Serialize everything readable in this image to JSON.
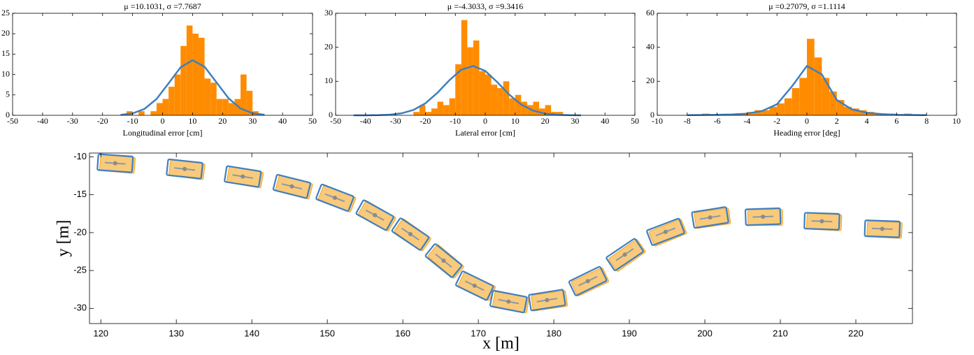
{
  "chart_data": [
    {
      "type": "histogram",
      "title": "μ =10.1031, σ =7.7687",
      "xlabel": "Longitudinal error [cm]",
      "color": "#ff8c00",
      "bins": [
        -12,
        -10,
        -8,
        -6,
        -4,
        -2,
        0,
        2,
        4,
        6,
        8,
        10,
        12,
        14,
        16,
        18,
        20,
        22,
        24,
        26,
        28,
        30,
        32
      ],
      "values": [
        1,
        0,
        1,
        0,
        1,
        3,
        4,
        7,
        10,
        17,
        22,
        20,
        19,
        9,
        8,
        4,
        4,
        3,
        4,
        10,
        6,
        1
      ],
      "line": {
        "color": "#3f7fbf",
        "x": [
          -14,
          -10,
          -6,
          -2,
          2,
          6,
          10,
          14,
          18,
          22,
          26,
          30,
          34
        ],
        "values": [
          0.11,
          0.47,
          1.58,
          4.0,
          7.84,
          11.75,
          13.5,
          11.9,
          8.05,
          4.18,
          1.66,
          0.51,
          0.12
        ]
      },
      "xlim": [
        -50,
        50
      ],
      "xticks": [
        -50,
        -40,
        -30,
        -20,
        -10,
        0,
        10,
        20,
        30,
        40,
        50
      ],
      "ylim": [
        0,
        25
      ],
      "yticks": [
        0,
        5,
        10,
        15,
        20,
        25
      ]
    },
    {
      "type": "histogram",
      "title": "μ =-4.3033, σ =9.3416",
      "xlabel": "Lateral error [cm]",
      "color": "#ff8c00",
      "bins": [
        -24,
        -22,
        -20,
        -18,
        -16,
        -14,
        -12,
        -10,
        -8,
        -6,
        -4,
        -2,
        0,
        2,
        4,
        6,
        8,
        10,
        12,
        14,
        16,
        18,
        20,
        22,
        24,
        26
      ],
      "values": [
        1,
        3,
        1,
        2,
        4,
        3,
        5,
        15,
        28,
        20,
        22,
        13,
        12,
        9,
        8,
        10,
        5,
        6,
        4,
        3,
        4,
        2,
        3,
        1,
        1
      ],
      "line": {
        "color": "#3f7fbf",
        "x": [
          -44,
          -40,
          -36,
          -32,
          -28,
          -24,
          -20,
          -16,
          -12,
          -8,
          -4,
          0,
          4,
          8,
          12,
          16,
          20,
          24,
          28,
          32
        ],
        "values": [
          0,
          0.01,
          0.05,
          0.18,
          0.58,
          1.57,
          3.53,
          6.61,
          10.3,
          13.4,
          14.5,
          13.05,
          9.77,
          6.09,
          3.16,
          1.37,
          0.49,
          0.15,
          0.04,
          0.01
        ]
      },
      "xlim": [
        -50,
        50
      ],
      "xticks": [
        -50,
        -40,
        -30,
        -20,
        -10,
        0,
        10,
        20,
        30,
        40,
        50
      ],
      "ylim": [
        0,
        30
      ],
      "yticks": [
        0,
        10,
        20,
        30
      ]
    },
    {
      "type": "histogram",
      "title": "μ =0.27079, σ =1.1114",
      "xlabel": "Heading error [deg]",
      "color": "#ff8c00",
      "bins": [
        -7,
        -6.5,
        -6,
        -5.5,
        -5,
        -4.5,
        -4,
        -3.5,
        -3,
        -2.5,
        -2,
        -1.5,
        -1,
        -0.5,
        0,
        0.5,
        1,
        1.5,
        2,
        2.5,
        3,
        3.5,
        4,
        4.5,
        5,
        5.5,
        6,
        6.5,
        7
      ],
      "values": [
        1,
        0,
        0,
        0,
        1,
        1,
        2,
        3,
        3,
        5,
        7,
        10,
        16,
        22,
        45,
        34,
        22,
        14,
        9,
        5,
        4,
        3,
        2,
        1,
        1,
        1,
        0,
        1
      ],
      "line": {
        "color": "#3f7fbf",
        "x": [
          -8,
          -7,
          -6,
          -5,
          -4,
          -3,
          -2,
          -1,
          0,
          1,
          2,
          3,
          4,
          5,
          6,
          7,
          8
        ],
        "values": [
          0.1,
          0.2,
          0.3,
          0.5,
          1,
          2.5,
          6.5,
          17,
          29,
          24,
          9,
          3.5,
          1.5,
          0.7,
          0.3,
          0.2,
          0.1
        ]
      },
      "xlim": [
        -10,
        10
      ],
      "xticks": [
        -10,
        -8,
        -6,
        -4,
        -2,
        0,
        2,
        4,
        6,
        8,
        10
      ],
      "ylim": [
        0,
        60
      ],
      "yticks": [
        0,
        20,
        40,
        60
      ]
    },
    {
      "type": "trajectory",
      "xlabel": "x [m]",
      "ylabel": "y [m]",
      "series": [
        {
          "color": "#f5a623",
          "x": [
            122.2,
            131.4,
            139.1,
            145.6,
            151.3,
            156.6,
            161.3,
            165.7,
            169.8,
            174.3,
            179.4,
            184.8,
            189.7,
            195.1,
            201.0,
            208.0,
            215.8,
            223.8
          ],
          "y": [
            -10.95,
            -11.7,
            -12.7,
            -14.0,
            -15.5,
            -17.8,
            -20.3,
            -23.8,
            -27.1,
            -29.2,
            -29.0,
            -26.5,
            -23.0,
            -20.0,
            -18.1,
            -18.0,
            -18.6,
            -19.6
          ],
          "heading": [
            -5,
            -7,
            -10,
            -15,
            -22,
            -30,
            -35,
            -40,
            -25,
            -10,
            8,
            25,
            35,
            22,
            8,
            0,
            -3,
            -3
          ]
        },
        {
          "color": "#3f7fbf",
          "x": [
            121.9,
            131.1,
            138.8,
            145.3,
            151.0,
            156.3,
            161.0,
            165.4,
            169.5,
            174.0,
            179.1,
            184.5,
            189.4,
            194.8,
            200.7,
            207.7,
            215.5,
            223.5
          ],
          "y": [
            -10.85,
            -11.6,
            -12.6,
            -13.9,
            -15.4,
            -17.7,
            -20.2,
            -23.7,
            -27.0,
            -29.1,
            -28.9,
            -26.4,
            -22.9,
            -19.9,
            -18.0,
            -17.9,
            -18.5,
            -19.5
          ],
          "heading": [
            -4,
            -6,
            -9,
            -14,
            -21,
            -29,
            -34,
            -39,
            -26,
            -11,
            9,
            26,
            34,
            21,
            9,
            2,
            -2,
            -2
          ]
        }
      ],
      "xlim": [
        118.5,
        227.5
      ],
      "xticks": [
        120,
        130,
        140,
        150,
        160,
        170,
        180,
        190,
        200,
        210,
        220
      ],
      "ylim": [
        -32,
        -9.5
      ],
      "yticks": [
        -10,
        -15,
        -20,
        -25,
        -30
      ]
    }
  ]
}
